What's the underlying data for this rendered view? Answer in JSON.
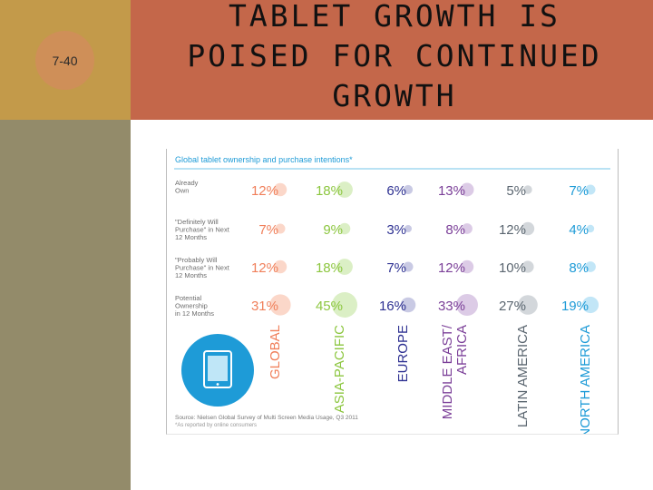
{
  "slide": {
    "number": "7-40",
    "title": "TABLET GROWTH IS\nPOISED FOR CONTINUED\nGROWTH"
  },
  "colors": {
    "gold": "#c39a4a",
    "olive": "#938b6a",
    "rust": "#c4674a",
    "badge": "#cf8f58",
    "accent_blue": "#1e9bd7"
  },
  "chart_data": {
    "type": "table",
    "title": "Global tablet ownership and purchase intentions*",
    "row_labels": [
      [
        "Already",
        "Own"
      ],
      [
        "\"Definitely Will",
        "Purchase\" in Next",
        "12 Months"
      ],
      [
        "\"Probably Will",
        "Purchase\" in Next",
        "12 Months"
      ],
      [
        "Potential",
        "Ownership",
        "in 12 Months"
      ]
    ],
    "columns": [
      {
        "label": [
          "GLOBAL"
        ],
        "color": "#f07f5a",
        "light": "#fbd7c9",
        "values": [
          "12%",
          "7%",
          "12%",
          "31%"
        ],
        "numbers": [
          12,
          7,
          12,
          31
        ]
      },
      {
        "label": [
          "ASIA-PACIFIC"
        ],
        "color": "#8cc63f",
        "light": "#dbefc5",
        "values": [
          "18%",
          "9%",
          "18%",
          "45%"
        ],
        "numbers": [
          18,
          9,
          18,
          45
        ]
      },
      {
        "label": [
          "EUROPE"
        ],
        "color": "#2e3192",
        "light": "#c9cae4",
        "values": [
          "6%",
          "3%",
          "7%",
          "16%"
        ],
        "numbers": [
          6,
          3,
          7,
          16
        ]
      },
      {
        "label": [
          "MIDDLE EAST/",
          "AFRICA"
        ],
        "color": "#7b3f98",
        "light": "#dccbe6",
        "values": [
          "13%",
          "8%",
          "12%",
          "33%"
        ],
        "numbers": [
          13,
          8,
          12,
          33
        ]
      },
      {
        "label": [
          "LATIN AMERICA"
        ],
        "color": "#5b6670",
        "light": "#d3d7db",
        "values": [
          "5%",
          "12%",
          "10%",
          "27%"
        ],
        "numbers": [
          5,
          12,
          10,
          27
        ]
      },
      {
        "label": [
          "NORTH AMERICA"
        ],
        "color": "#1e9bd7",
        "light": "#c2e6f7",
        "values": [
          "7%",
          "4%",
          "8%",
          "19%"
        ],
        "numbers": [
          7,
          4,
          8,
          19
        ]
      }
    ],
    "source": "Source: Nielsen Global Survey of Multi Screen Media Usage, Q3 2011",
    "footnote": "*As reported by online consumers",
    "icon": "tablet-icon"
  }
}
